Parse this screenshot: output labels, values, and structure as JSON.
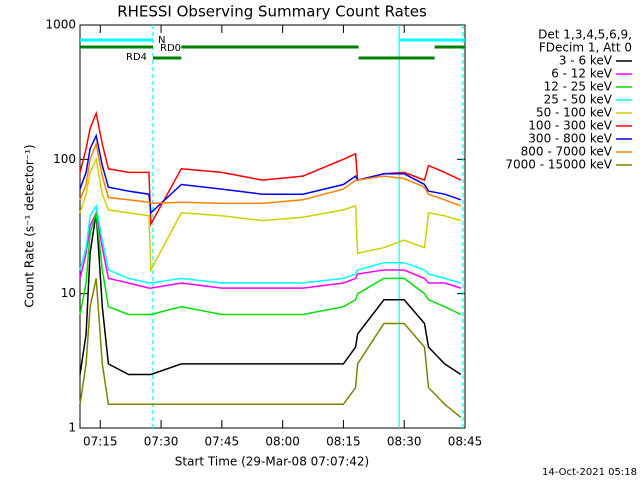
{
  "chart_data": {
    "type": "line",
    "title": "RHESSI Observing Summary Count Rates",
    "xlabel": "Start Time (29-Mar-08 07:07:42)",
    "ylabel": "Count Rate (s⁻¹ detector⁻¹)",
    "legend_header": [
      "Det 1,3,4,5,6,9,",
      "FDecim 1, Att 0"
    ],
    "footer": "14-Oct-2021 05:18",
    "log_y": true,
    "xlim": [
      10,
      105
    ],
    "ylim": [
      1,
      1000
    ],
    "yticks": [
      1,
      10,
      100,
      1000
    ],
    "xticks": [
      {
        "value": 15,
        "label": "07:15"
      },
      {
        "value": 30,
        "label": "07:30"
      },
      {
        "value": 45,
        "label": "07:45"
      },
      {
        "value": 60,
        "label": "08:00"
      },
      {
        "value": 75,
        "label": "08:15"
      },
      {
        "value": 90,
        "label": "08:30"
      },
      {
        "value": 105,
        "label": "08:45"
      }
    ],
    "x": [
      10,
      11.5,
      12.5,
      14,
      15.5,
      17,
      22,
      27,
      27.5,
      35,
      45,
      55,
      65,
      75,
      78,
      78.5,
      85,
      90,
      95,
      96,
      100,
      104
    ],
    "series": [
      {
        "name": "3 - 6 keV",
        "color": "#000000",
        "values": [
          2.5,
          5,
          20,
          40,
          8,
          3,
          2.5,
          2.5,
          2.5,
          3,
          3,
          3,
          3,
          3,
          4,
          5,
          9,
          9,
          6,
          4,
          3,
          2.5
        ]
      },
      {
        "name": "6 - 12 keV",
        "color": "#ff00ff",
        "values": [
          13,
          20,
          32,
          40,
          22,
          13,
          12,
          11,
          11,
          12,
          11,
          11,
          11,
          12,
          13,
          14,
          15,
          15,
          13,
          12,
          12,
          11
        ]
      },
      {
        "name": "12 - 25 keV",
        "color": "#00e000",
        "values": [
          7,
          12,
          28,
          40,
          15,
          8,
          7,
          7,
          7,
          8,
          7,
          7,
          7,
          8,
          9,
          10,
          13,
          13,
          10,
          9,
          8,
          7
        ]
      },
      {
        "name": "25 - 50 keV",
        "color": "#00ffff",
        "values": [
          15,
          22,
          38,
          45,
          25,
          15,
          13,
          12,
          12,
          13,
          12,
          12,
          12,
          13,
          14,
          15,
          17,
          17,
          15,
          14,
          13,
          12
        ]
      },
      {
        "name": "50 - 100 keV",
        "color": "#d0d000",
        "values": [
          40,
          55,
          80,
          100,
          55,
          42,
          40,
          38,
          15,
          40,
          38,
          35,
          37,
          42,
          45,
          20,
          22,
          25,
          22,
          40,
          38,
          35
        ]
      },
      {
        "name": "100 - 300 keV",
        "color": "#ff0000",
        "values": [
          80,
          120,
          170,
          220,
          130,
          85,
          80,
          80,
          33,
          85,
          80,
          70,
          75,
          100,
          110,
          70,
          78,
          80,
          70,
          90,
          80,
          70
        ]
      },
      {
        "name": "300 - 800 keV",
        "color": "#0000ff",
        "values": [
          60,
          80,
          120,
          150,
          90,
          62,
          58,
          55,
          40,
          65,
          60,
          55,
          55,
          65,
          75,
          70,
          78,
          78,
          65,
          58,
          55,
          50
        ]
      },
      {
        "name": "800 - 7000 keV",
        "color": "#ff8000",
        "values": [
          50,
          65,
          100,
          130,
          75,
          52,
          50,
          48,
          47,
          48,
          47,
          47,
          50,
          60,
          70,
          70,
          75,
          72,
          62,
          55,
          50,
          45
        ]
      },
      {
        "name": "7000 - 15000 keV",
        "color": "#808000",
        "values": [
          1.5,
          3,
          8,
          13,
          3,
          1.5,
          1.5,
          1.5,
          1.5,
          1.5,
          1.5,
          1.5,
          1.5,
          1.5,
          2,
          3,
          6,
          6,
          4,
          2,
          1.5,
          1.2
        ]
      }
    ],
    "flags": [
      {
        "label": "N",
        "color": "#00ffff",
        "segments": [
          [
            10,
            28
          ],
          [
            88.75,
            105
          ]
        ]
      },
      {
        "label": "RD0",
        "color": "#008000",
        "segments": [
          [
            10,
            28
          ],
          [
            35,
            78.75
          ],
          [
            97.5,
            105
          ]
        ]
      },
      {
        "label": "RD4",
        "color": "#008000",
        "segments": [
          [
            28,
            35
          ],
          [
            78.75,
            97.5
          ]
        ]
      }
    ],
    "vlines": [
      {
        "x": 28,
        "color": "#00ffff",
        "dashed": true
      },
      {
        "x": 88.75,
        "color": "#00ffff",
        "dashed": false
      },
      {
        "x": 104.5,
        "color": "#00ffff",
        "dashed": true
      }
    ]
  }
}
